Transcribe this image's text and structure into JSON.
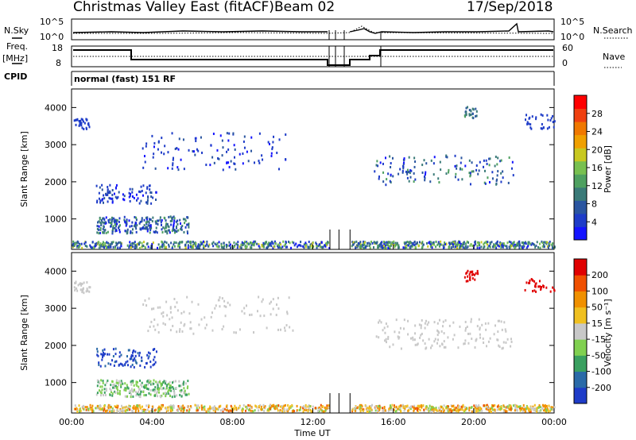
{
  "header": {
    "station": "Christmas Valley East (fitACF)",
    "beam": "Beam 02",
    "date": "17/Sep/2018"
  },
  "noise_panel": {
    "left_label": "N.Sky",
    "right_label": "N.Search",
    "y_ticks": [
      "10^5",
      "10^0"
    ]
  },
  "freq_panel": {
    "left_label_line1": "Freq.",
    "left_label_line2": "[MHz]",
    "right_label": "Nave",
    "left_ticks": [
      "18",
      "8"
    ],
    "right_ticks": [
      "60",
      "0"
    ]
  },
  "cpid": {
    "label": "CPID",
    "value": "normal (fast) 151 RF"
  },
  "chart_data": [
    {
      "type": "heatmap",
      "name": "power",
      "ylabel": "Slant Range [km]",
      "ylim": [
        180,
        4500
      ],
      "yticks": [
        1000,
        2000,
        3000,
        4000
      ],
      "xlim": [
        0,
        24
      ],
      "colorbar": {
        "label": "Power [dB]",
        "ticks": [
          4,
          8,
          12,
          16,
          20,
          24,
          28
        ],
        "range": [
          0,
          32
        ],
        "colors": [
          "#1414ff",
          "#1e3cc8",
          "#2a55a0",
          "#3a7a78",
          "#4ea060",
          "#78c050",
          "#c8c820",
          "#f0a000",
          "#f07800",
          "#f04010",
          "#ff0000"
        ]
      },
      "data_type": "Power"
    },
    {
      "type": "heatmap",
      "name": "velocity",
      "ylabel": "Slant Range [km]",
      "ylim": [
        180,
        4500
      ],
      "yticks": [
        1000,
        2000,
        3000,
        4000
      ],
      "xlim": [
        0,
        24
      ],
      "xlabel": "Time UT",
      "xticks": [
        "00:00",
        "04:00",
        "08:00",
        "12:00",
        "16:00",
        "20:00",
        "00:00"
      ],
      "colorbar": {
        "label": "Velocity [m s⁻¹]",
        "tick_labels": [
          "200",
          "100",
          "50",
          "15",
          "-15",
          "-50",
          "-100",
          "-200"
        ],
        "colors": [
          "#1e3cc8",
          "#2a6aa8",
          "#3aa060",
          "#80d050",
          "#c8c8c8",
          "#f0c020",
          "#f09000",
          "#f05000",
          "#e00000"
        ]
      },
      "data_type": "Velocity"
    }
  ]
}
